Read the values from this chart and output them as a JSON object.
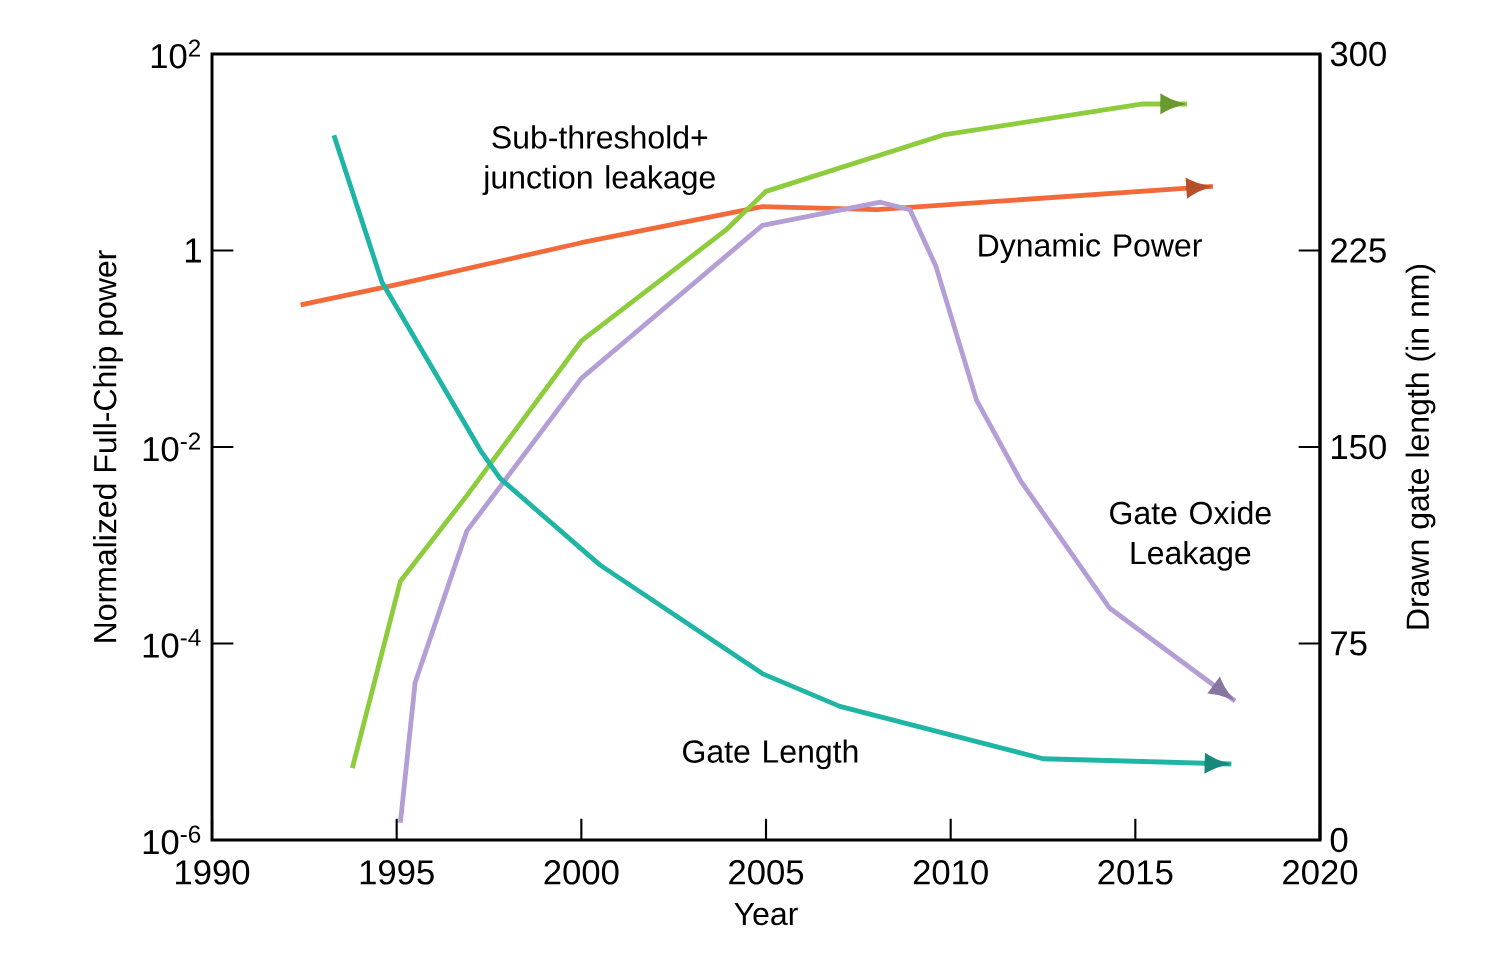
{
  "chart_data": {
    "type": "line",
    "xlabel": "Year",
    "ylabel": "Normalized Full-Chip power",
    "y2label": "Drawn gate length (in nm)",
    "log": "y",
    "xlim": [
      1990,
      2020
    ],
    "xticks": [
      1990,
      1995,
      2000,
      2005,
      2010,
      2015,
      2020
    ],
    "ylim": [
      1e-06,
      100
    ],
    "yticks": [
      {
        "value": 1e-06,
        "label": "10$^{-6}$"
      },
      {
        "value": 0.0001,
        "label": "10$^{-4}$"
      },
      {
        "value": 0.01,
        "label": "10$^{-2}$"
      },
      1,
      {
        "value": 100,
        "label": "10$^{2}$"
      }
    ],
    "y2lim": [
      0,
      300
    ],
    "y2ticks": [
      0,
      75,
      150,
      225,
      300
    ],
    "series": [
      {
        "color": "#f26a3a",
        "x": [
          1992.4,
          1995,
          2000,
          2004.9,
          2008,
          2017.1
        ],
        "values": [
          0.28,
          0.45,
          1.2,
          2.8,
          2.6,
          4.5
        ]
      },
      {
        "color": "#8dcc3c",
        "x": [
          1993.8,
          1995.1,
          1996.9,
          2000,
          2003.9,
          2005,
          2009.8,
          2015.2,
          2016.4
        ],
        "values": [
          5.4e-06,
          0.00043,
          0.0032,
          0.12,
          1.6,
          4,
          15,
          31,
          31
        ]
      },
      {
        "color": "#b49ed6",
        "x": [
          1995.1,
          1995.5,
          1996.9,
          2000,
          2004.9,
          2008.1,
          2008.9,
          2009.6,
          2010.7,
          2011.9,
          2014.3,
          2017.7
        ],
        "values": [
          1.5e-06,
          4e-05,
          0.0014,
          0.05,
          1.8,
          3.1,
          2.6,
          0.69,
          0.03,
          0.0045,
          0.00023,
          2.6e-05
        ]
      },
      {
        "color": "#1fb5a5",
        "axis": "y2",
        "x": [
          1993.3,
          1994.6,
          1997.3,
          1997.8,
          2000.5,
          2004.9,
          2007,
          2012.5,
          2017.6
        ],
        "values": [
          269,
          213,
          148,
          138,
          105,
          63.5,
          51,
          31,
          29
        ]
      }
    ],
    "annotations": [
      "Sub-threshold+ junction leakage",
      "Dynamic Power",
      "Gate Oxide Leakage",
      "Gate Length"
    ]
  }
}
